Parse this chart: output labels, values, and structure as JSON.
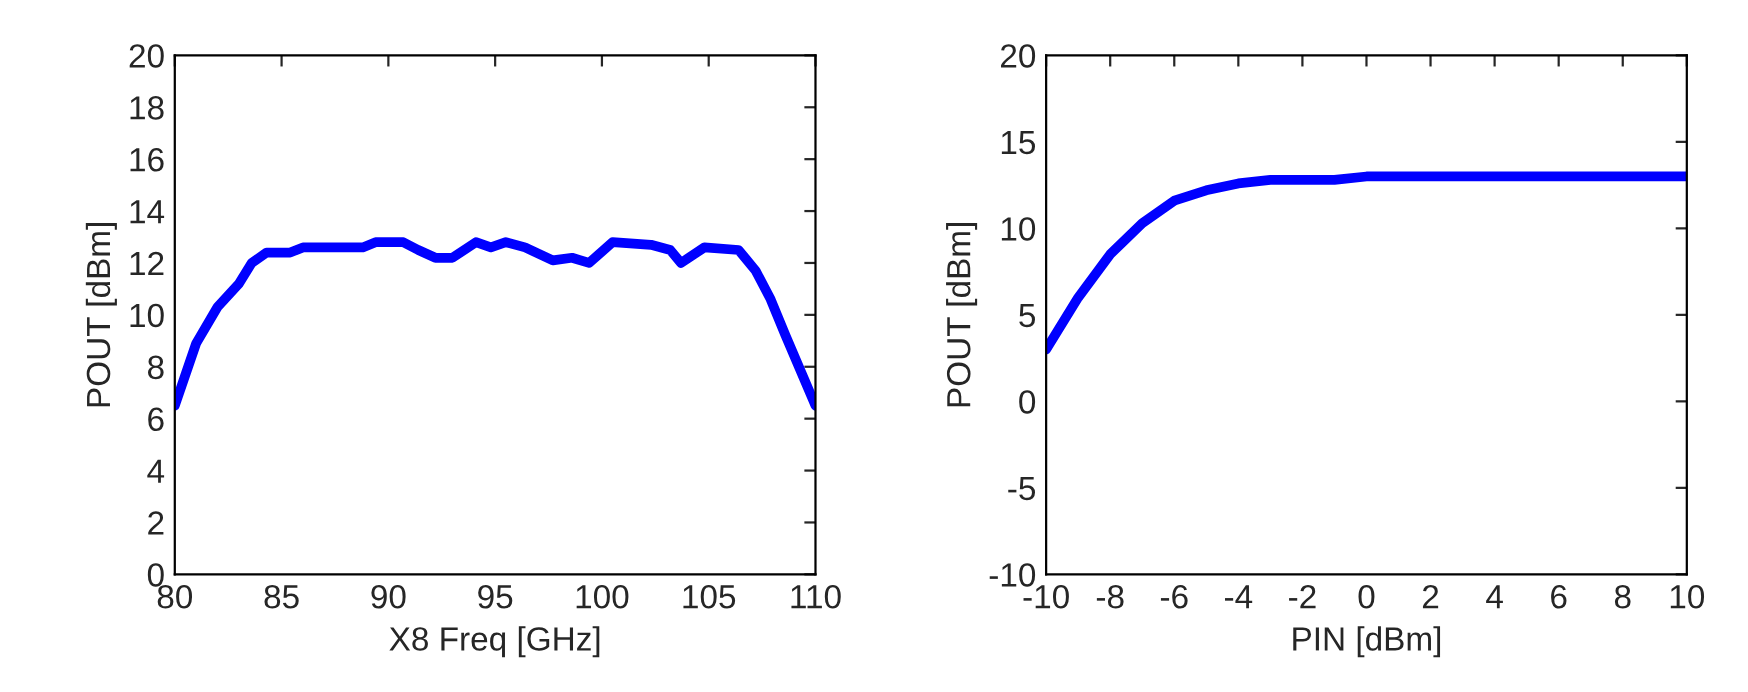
{
  "chart_data": [
    {
      "type": "line",
      "xlabel": "X8 Freq [GHz]",
      "ylabel": "POUT [dBm]",
      "xlim": [
        80,
        110
      ],
      "ylim": [
        0,
        20
      ],
      "xticks": [
        80,
        85,
        90,
        95,
        100,
        105,
        110
      ],
      "yticks": [
        0,
        2,
        4,
        6,
        8,
        10,
        12,
        14,
        16,
        18,
        20
      ],
      "grid": false,
      "legend": false,
      "series": [
        {
          "color": "#0000ff",
          "x": [
            80,
            81.0,
            82,
            83,
            83.6,
            84.3,
            85.4,
            86.0,
            88.8,
            89.4,
            90.7,
            91.4,
            92.2,
            93.0,
            94.1,
            94.8,
            95.5,
            96.4,
            97.7,
            98.6,
            99.4,
            100.5,
            102.3,
            103.2,
            103.7,
            104.8,
            106.4,
            107.2,
            107.9,
            108.6,
            110
          ],
          "values": [
            6.5,
            8.9,
            10.3,
            11.2,
            12.0,
            12.4,
            12.4,
            12.6,
            12.6,
            12.8,
            12.8,
            12.5,
            12.2,
            12.2,
            12.8,
            12.6,
            12.8,
            12.6,
            12.1,
            12.2,
            12.0,
            12.8,
            12.7,
            12.5,
            12.0,
            12.6,
            12.5,
            11.7,
            10.6,
            9.2,
            6.5
          ]
        }
      ]
    },
    {
      "type": "line",
      "xlabel": "PIN [dBm]",
      "ylabel": "POUT [dBm]",
      "xlim": [
        -10,
        10
      ],
      "ylim": [
        -10,
        20
      ],
      "xticks": [
        -10,
        -8,
        -6,
        -4,
        -2,
        0,
        2,
        4,
        6,
        8,
        10
      ],
      "yticks": [
        -10,
        -5,
        0,
        5,
        10,
        15,
        20
      ],
      "grid": false,
      "legend": false,
      "series": [
        {
          "color": "#0000ff",
          "x": [
            -10,
            -9,
            -8,
            -7,
            -6,
            -5,
            -4,
            -3,
            -2,
            -1,
            0,
            10
          ],
          "values": [
            3,
            6,
            8.5,
            10.3,
            11.6,
            12.2,
            12.6,
            12.8,
            12.8,
            12.8,
            13,
            13
          ]
        }
      ]
    }
  ]
}
